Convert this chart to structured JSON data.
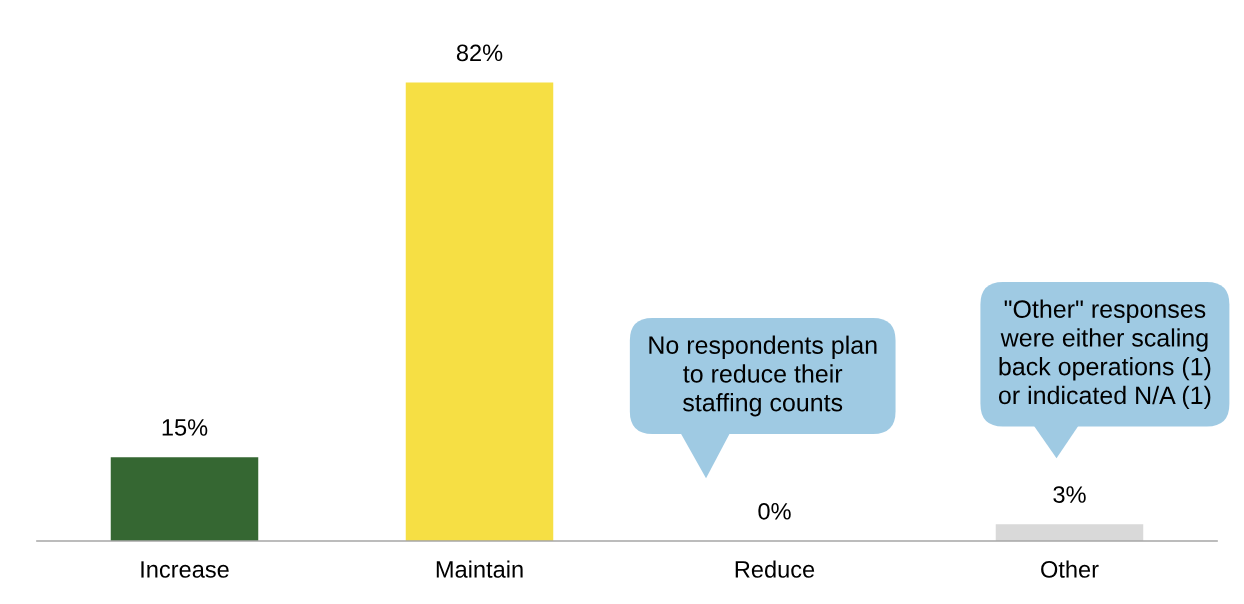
{
  "chart_data": {
    "type": "bar",
    "categories": [
      "Increase",
      "Maintain",
      "Reduce",
      "Other"
    ],
    "values": [
      15,
      82,
      0,
      3
    ],
    "colors": [
      "#356732",
      "#f6df44",
      "#d9d9d9",
      "#d9d9d9"
    ],
    "value_labels": [
      "15%",
      "82%",
      "0%",
      "3%"
    ],
    "annotations": [
      "No respondents plan\nto reduce their\nstaffing counts",
      "\"Other\" responses\nwere either scaling\nback operations (1)\nor indicated N/A (1)"
    ]
  }
}
